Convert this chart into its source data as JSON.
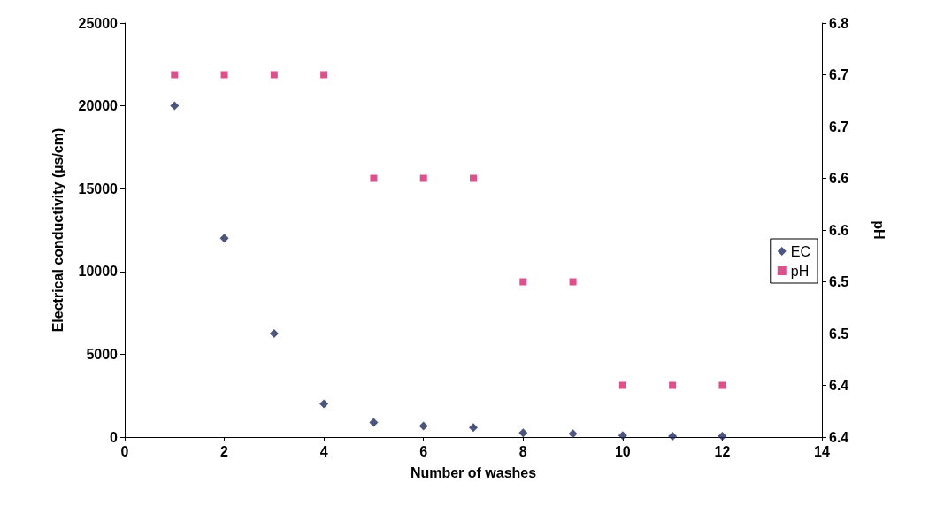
{
  "chart_data": {
    "type": "scatter",
    "xlabel": "Number of washes",
    "ylabel": "Electrical conductivity (µs/cm)",
    "y2label": "pH",
    "xlim": [
      0,
      14
    ],
    "xticks": [
      0,
      2,
      4,
      6,
      8,
      10,
      12,
      14
    ],
    "ylim": [
      0,
      25000
    ],
    "yticks": [
      0,
      5000,
      10000,
      15000,
      20000,
      25000
    ],
    "y2lim": [
      6.4,
      6.8
    ],
    "y2ticks": [
      {
        "value": 6.4,
        "label": "6.4"
      },
      {
        "value": 6.45,
        "label": "6.4"
      },
      {
        "value": 6.5,
        "label": "6.5"
      },
      {
        "value": 6.55,
        "label": "6.5"
      },
      {
        "value": 6.6,
        "label": "6.6"
      },
      {
        "value": 6.65,
        "label": "6.6"
      },
      {
        "value": 6.7,
        "label": "6.7"
      },
      {
        "value": 6.75,
        "label": "6.7"
      },
      {
        "value": 6.8,
        "label": "6.8"
      }
    ],
    "x": [
      1,
      2,
      3,
      4,
      5,
      6,
      7,
      8,
      9,
      10,
      11,
      12
    ],
    "grid": false,
    "legend": "right",
    "series": [
      {
        "name": "EC",
        "color": "#1f2a5c",
        "marker": "diamond",
        "values": [
          20000,
          12000,
          6250,
          2000,
          880,
          670,
          570,
          260,
          200,
          100,
          50,
          50
        ]
      },
      {
        "name": "pH",
        "color": "#d6246e",
        "marker": "square",
        "axis": "y2",
        "values": [
          6.75,
          6.75,
          6.75,
          6.75,
          6.65,
          6.65,
          6.65,
          6.55,
          6.55,
          6.45,
          6.45,
          6.45
        ]
      }
    ]
  }
}
